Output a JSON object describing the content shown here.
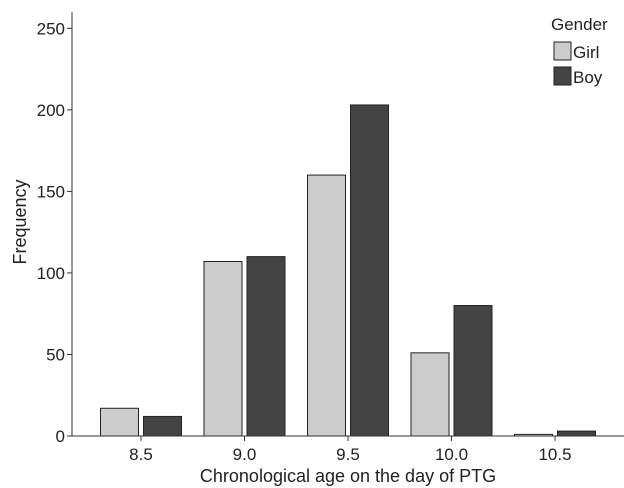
{
  "chart_data": {
    "type": "bar",
    "categories": [
      "8.5",
      "9.0",
      "9.5",
      "10.0",
      "10.5"
    ],
    "series": [
      {
        "name": "Girl",
        "values": [
          17,
          107,
          160,
          51,
          1
        ],
        "color": "#cccccc"
      },
      {
        "name": "Boy",
        "values": [
          12,
          110,
          203,
          80,
          3
        ],
        "color": "#444444"
      }
    ],
    "title": "",
    "xlabel": "Chronological age on the day of PTG",
    "ylabel": "Frequency",
    "ylim": [
      0,
      260
    ],
    "yticks": [
      0,
      50,
      100,
      150,
      200,
      250
    ],
    "grid": false,
    "legend": {
      "title": "Gender",
      "placement": "top-right"
    },
    "bar_edge_color": "#222222"
  }
}
